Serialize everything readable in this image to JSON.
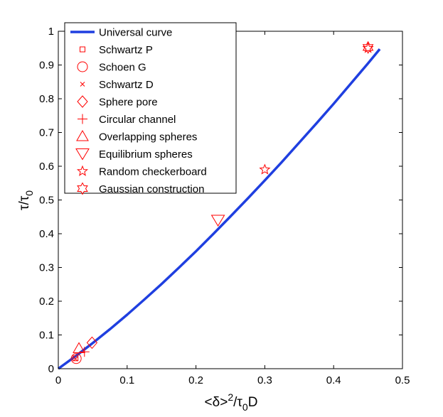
{
  "chart_data": {
    "type": "scatter",
    "title": "",
    "xlabel": {
      "base": "<δ>",
      "sup": "2",
      "after": "/τ",
      "sub": "0",
      "tail": "D"
    },
    "ylabel": {
      "base": "τ/τ",
      "sub": "0"
    },
    "xlim": [
      0,
      0.5
    ],
    "ylim": [
      0,
      1
    ],
    "xticks": [
      0,
      0.1,
      0.2,
      0.3,
      0.4,
      0.5
    ],
    "xtick_labels": [
      "0",
      "0.1",
      "0.2",
      "0.3",
      "0.4",
      "0.5"
    ],
    "yticks": [
      0,
      0.1,
      0.2,
      0.3,
      0.4,
      0.5,
      0.6,
      0.7,
      0.8,
      0.9,
      1
    ],
    "ytick_labels": [
      "0",
      "0.1",
      "0.2",
      "0.3",
      "0.4",
      "0.5",
      "0.6",
      "0.7",
      "0.8",
      "0.9",
      "1"
    ],
    "grid": false,
    "legend_position": "top-left",
    "curve": {
      "name": "Universal curve",
      "color": "#1f3fe0",
      "x": [
        0,
        0.025,
        0.05,
        0.075,
        0.1,
        0.125,
        0.15,
        0.175,
        0.2,
        0.225,
        0.25,
        0.275,
        0.3,
        0.325,
        0.35,
        0.375,
        0.4,
        0.425,
        0.45,
        0.467
      ],
      "y": [
        0,
        0.037,
        0.076,
        0.117,
        0.16,
        0.205,
        0.251,
        0.299,
        0.348,
        0.399,
        0.451,
        0.504,
        0.558,
        0.613,
        0.67,
        0.727,
        0.785,
        0.845,
        0.905,
        0.947
      ]
    },
    "series": [
      {
        "name": "Schwartz P",
        "marker": "square",
        "points": [
          [
            0.025,
            0.031
          ]
        ]
      },
      {
        "name": "Schoen G",
        "marker": "circle",
        "points": [
          [
            0.026,
            0.03
          ]
        ]
      },
      {
        "name": "Schwartz D",
        "marker": "x",
        "points": [
          [
            0.025,
            0.029
          ]
        ]
      },
      {
        "name": "Sphere pore",
        "marker": "diamond",
        "points": [
          [
            0.049,
            0.077
          ]
        ]
      },
      {
        "name": "Circular channel",
        "marker": "plus",
        "points": [
          [
            0.038,
            0.05
          ]
        ]
      },
      {
        "name": "Overlapping spheres",
        "marker": "triangle-up",
        "points": [
          [
            0.03,
            0.06
          ]
        ]
      },
      {
        "name": "Equilibrium spheres",
        "marker": "triangle-down",
        "points": [
          [
            0.232,
            0.44
          ]
        ]
      },
      {
        "name": "Random checkerboard",
        "marker": "star5",
        "points": [
          [
            0.3,
            0.59
          ],
          [
            0.45,
            0.95
          ]
        ]
      },
      {
        "name": "Gaussian construction",
        "marker": "star6",
        "points": [
          [
            0.45,
            0.952
          ]
        ]
      }
    ],
    "marker_color": "#ff0000"
  }
}
